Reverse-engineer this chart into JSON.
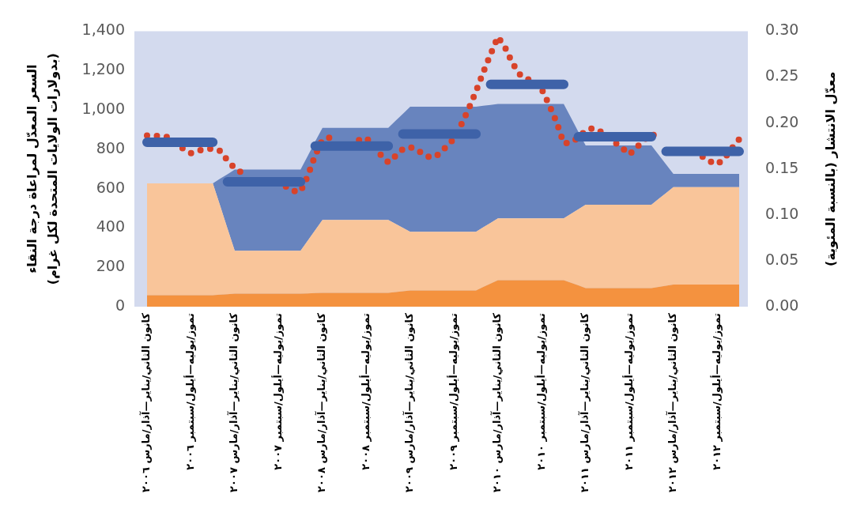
{
  "chart_data": {
    "type": "area",
    "stacked": true,
    "grid": false,
    "legend": false,
    "ylabel": "السعر المعدّل لمراعاة درجة النقاء\n(بدولارات الولايات المتحدة لكل غرام)",
    "y2label": "معدّل الانتشار (بالنسبة المئوية)",
    "categories": [
      "كانون الثاني/يناير—آذار/مارس ٢٠٠٦",
      null,
      null,
      null,
      null,
      null,
      "تموز/يوليه—أيلول/سبتمبر ٢٠٠٦",
      null,
      null,
      null,
      null,
      null,
      "كانون الثاني/يناير—آذار/مارس ٢٠٠٧",
      null,
      null,
      null,
      null,
      null,
      "تموز/يوليه—أيلول/سبتمبر ٢٠٠٧",
      null,
      null,
      null,
      null,
      null,
      "كانون الثاني/يناير—آذار/مارس ٢٠٠٨",
      null,
      null,
      null,
      null,
      null,
      "تموز/يوليه—أيلول/سبتمبر ٢٠٠٨",
      null,
      null,
      null,
      null,
      null,
      "كانون الثاني/يناير—آذار/مارس ٢٠٠٩",
      null,
      null,
      null,
      null,
      null,
      "تموز/يوليه—أيلول/سبتمبر ٢٠٠٩",
      null,
      null,
      null,
      null,
      null,
      "كانون الثاني/يناير—آذار/مارس ٢٠١٠",
      null,
      null,
      null,
      null,
      null,
      "تموز/يوليه—أيلول/سبتمبر ٢٠١٠",
      null,
      null,
      null,
      null,
      null,
      "كانون الثاني/يناير—آذار/مارس ٢٠١١",
      null,
      null,
      null,
      null,
      null,
      "تموز/يوليه—أيلول/سبتمبر ٢٠١١",
      null,
      null,
      null,
      null,
      null,
      "كانون الثاني/يناير—آذار/مارس ٢٠١٢",
      null,
      null,
      null,
      null,
      null,
      "تموز/يوليه—أيلول/سبتمبر ٢٠١٢",
      null,
      null,
      null
    ],
    "ylim": [
      0,
      1400
    ],
    "yticks": [
      0,
      200,
      400,
      600,
      800,
      {
        "value": 1000,
        "label": "1,000"
      },
      {
        "value": 1200,
        "label": "1,200"
      },
      {
        "value": 1400,
        "label": "1,400"
      }
    ],
    "y2lim": [
      0,
      0.3
    ],
    "y2ticks": [
      {
        "value": 0,
        "label": "0.00"
      },
      {
        "value": 0.05,
        "label": "0.05"
      },
      {
        "value": 0.1,
        "label": "0.10"
      },
      {
        "value": 0.15,
        "label": "0.15"
      },
      {
        "value": 0.2,
        "label": "0.20"
      },
      {
        "value": 0.25,
        "label": "0.25"
      },
      {
        "value": 0.3,
        "label": "0.30"
      }
    ],
    "series": [
      {
        "color": "#f4923f",
        "values": [
          58,
          58,
          58,
          58,
          58,
          58,
          58,
          58,
          58,
          58,
          61,
          63,
          66,
          66,
          66,
          66,
          66,
          66,
          66,
          66,
          66,
          66,
          67,
          69,
          70,
          70,
          70,
          70,
          70,
          70,
          70,
          70,
          70,
          70,
          74,
          78,
          82,
          82,
          82,
          82,
          82,
          82,
          82,
          82,
          82,
          82,
          100,
          117,
          135,
          135,
          135,
          135,
          135,
          135,
          135,
          135,
          135,
          135,
          121,
          108,
          94,
          94,
          94,
          94,
          94,
          94,
          94,
          94,
          94,
          94,
          100,
          106,
          112,
          112,
          112,
          112,
          112,
          112,
          112,
          112,
          112,
          112
        ]
      },
      {
        "color": "#f9c59a",
        "values": [
          569,
          569,
          569,
          569,
          569,
          569,
          569,
          569,
          569,
          569,
          452,
          335,
          218,
          218,
          218,
          218,
          218,
          218,
          218,
          218,
          218,
          218,
          269,
          320,
          371,
          371,
          371,
          371,
          371,
          371,
          371,
          371,
          371,
          371,
          347,
          323,
          299,
          299,
          299,
          299,
          299,
          299,
          299,
          299,
          299,
          299,
          304,
          309,
          314,
          314,
          314,
          314,
          314,
          314,
          314,
          314,
          314,
          314,
          351,
          387,
          424,
          424,
          424,
          424,
          424,
          424,
          424,
          424,
          424,
          424,
          448,
          471,
          495,
          495,
          495,
          495,
          495,
          495,
          495,
          495,
          495,
          495
        ]
      },
      {
        "color": "#6884be",
        "values": [
          0,
          0,
          0,
          0,
          0,
          0,
          0,
          0,
          0,
          0,
          138,
          275,
          413,
          413,
          413,
          413,
          413,
          413,
          413,
          413,
          413,
          413,
          431,
          450,
          468,
          468,
          468,
          468,
          468,
          468,
          468,
          468,
          468,
          468,
          524,
          579,
          635,
          635,
          635,
          635,
          635,
          635,
          635,
          635,
          635,
          635,
          617,
          599,
          581,
          581,
          581,
          581,
          581,
          581,
          581,
          581,
          581,
          581,
          488,
          394,
          301,
          301,
          301,
          301,
          301,
          301,
          301,
          301,
          301,
          301,
          223,
          146,
          68,
          68,
          68,
          68,
          68,
          68,
          68,
          68,
          68,
          68
        ]
      },
      {
        "type": "line",
        "line_style": "dotted",
        "color": "#d8432a",
        "values": [
          869,
          869,
          866,
          861,
          833,
          800,
          780,
          793,
          800,
          804,
          792,
          743,
          704,
          679,
          669,
          null,
          null,
          null,
          null,
          610,
          588,
          585,
          665,
          769,
          848,
          859,
          null,
          null,
          null,
          846,
          857,
          819,
          770,
          733,
          766,
          801,
          811,
          796,
          767,
          757,
          776,
          816,
          853,
          926,
          1005,
          1094,
          1192,
          1283,
          1371,
          1315,
          1236,
          1180,
          1155,
          1150,
          1104,
          1026,
          940,
          830,
          834,
          858,
          896,
          907,
          891,
          863,
          835,
          806,
          774,
          810,
          847,
          877,
          862,
          null,
          null,
          null,
          null,
          null,
          762,
          738,
          724,
          754,
          805,
          851
        ]
      },
      {
        "type": "line",
        "axis": "y2",
        "color": "#3e62a8",
        "values": [
          0.179,
          0.179,
          0.179,
          0.179,
          0.179,
          0.179,
          0.179,
          0.179,
          0.179,
          0.179,
          null,
          0.136,
          0.136,
          0.136,
          0.136,
          0.136,
          0.136,
          0.136,
          0.136,
          0.136,
          0.136,
          0.136,
          null,
          0.175,
          0.175,
          0.175,
          0.175,
          0.175,
          0.175,
          0.175,
          0.175,
          0.175,
          0.175,
          0.175,
          null,
          0.188,
          0.188,
          0.188,
          0.188,
          0.188,
          0.188,
          0.188,
          0.188,
          0.188,
          0.188,
          0.188,
          null,
          0.242,
          0.242,
          0.242,
          0.242,
          0.242,
          0.242,
          0.242,
          0.242,
          0.242,
          0.242,
          0.242,
          null,
          0.185,
          0.185,
          0.185,
          0.185,
          0.185,
          0.185,
          0.185,
          0.185,
          0.185,
          0.185,
          0.185,
          null,
          0.169,
          0.169,
          0.169,
          0.169,
          0.169,
          0.169,
          0.169,
          0.169,
          0.169,
          0.169,
          0.169
        ]
      }
    ]
  }
}
